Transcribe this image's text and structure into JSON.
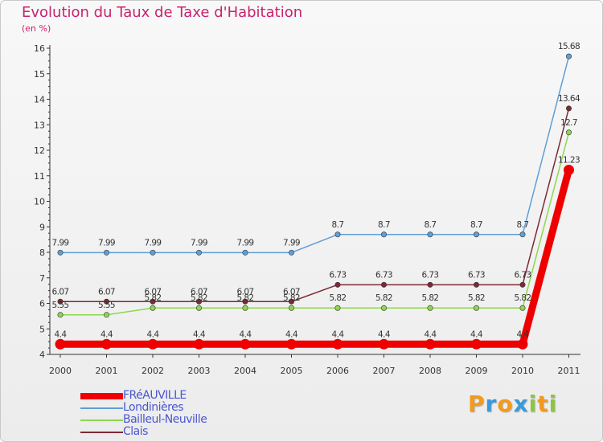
{
  "title": "Evolution du Taux de Taxe d'Habitation",
  "subtitle": "(en %)",
  "logo": {
    "letters": [
      "P",
      "r",
      "o",
      "x",
      "i",
      "t",
      "i"
    ],
    "colors": [
      "#f29a1e",
      "#3a9ad9",
      "#f29a1e",
      "#3a9ad9",
      "#8cc63f",
      "#f29a1e",
      "#8cc63f"
    ]
  },
  "chart_data": {
    "type": "line",
    "x": [
      "2000",
      "2001",
      "2002",
      "2003",
      "2004",
      "2005",
      "2006",
      "2007",
      "2008",
      "2009",
      "2010",
      "2011"
    ],
    "ylim": [
      4,
      16
    ],
    "yticks": [
      4,
      5,
      6,
      7,
      8,
      9,
      10,
      11,
      12,
      13,
      14,
      15,
      16
    ],
    "ytick_labels": [
      "4",
      "5",
      "6",
      "7",
      "8",
      "9",
      "10",
      "11",
      "12",
      "13",
      "14",
      "15",
      "16"
    ],
    "grid": false,
    "legend_position": "bottom-left",
    "series": [
      {
        "name": "Londinières",
        "color": "#5f9fd6",
        "values": [
          7.99,
          7.99,
          7.99,
          7.99,
          7.99,
          7.99,
          8.7,
          8.7,
          8.7,
          8.7,
          8.7,
          15.68
        ],
        "labels": [
          "7.99",
          "7.99",
          "7.99",
          "7.99",
          "7.99",
          "7.99",
          "8.7",
          "8.7",
          "8.7",
          "8.7",
          "8.7",
          "15.68"
        ]
      },
      {
        "name": "Clais",
        "color": "#7b2a35",
        "values": [
          6.07,
          6.07,
          6.07,
          6.07,
          6.07,
          6.07,
          6.73,
          6.73,
          6.73,
          6.73,
          6.73,
          13.64
        ],
        "labels": [
          "6.07",
          "6.07",
          "6.07",
          "6.07",
          "6.07",
          "6.07",
          "6.73",
          "6.73",
          "6.73",
          "6.73",
          "6.73",
          "13.64"
        ]
      },
      {
        "name": "Bailleul-Neuville",
        "color": "#8fd64f",
        "values": [
          5.55,
          5.55,
          5.82,
          5.82,
          5.82,
          5.82,
          5.82,
          5.82,
          5.82,
          5.82,
          5.82,
          12.7
        ],
        "labels": [
          "5.55",
          "5.55",
          "5.82",
          "5.82",
          "5.82",
          "5.82",
          "5.82",
          "5.82",
          "5.82",
          "5.82",
          "5.82",
          "12.7"
        ]
      },
      {
        "name": "FRéAUVILLE",
        "color": "#ee0000",
        "values": [
          4.4,
          4.4,
          4.4,
          4.4,
          4.4,
          4.4,
          4.4,
          4.4,
          4.4,
          4.4,
          4.4,
          11.23
        ],
        "labels": [
          "4.4",
          "4.4",
          "4.4",
          "4.4",
          "4.4",
          "4.4",
          "4.4",
          "4.4",
          "4.4",
          "4.4",
          "4.4",
          "11.23"
        ]
      }
    ],
    "legend": [
      {
        "name": "FRéAUVILLE",
        "color": "#ee0000"
      },
      {
        "name": "Londinières",
        "color": "#5f9fd6"
      },
      {
        "name": "Bailleul-Neuville",
        "color": "#8fd64f"
      },
      {
        "name": "Clais",
        "color": "#7b2a35"
      }
    ]
  }
}
